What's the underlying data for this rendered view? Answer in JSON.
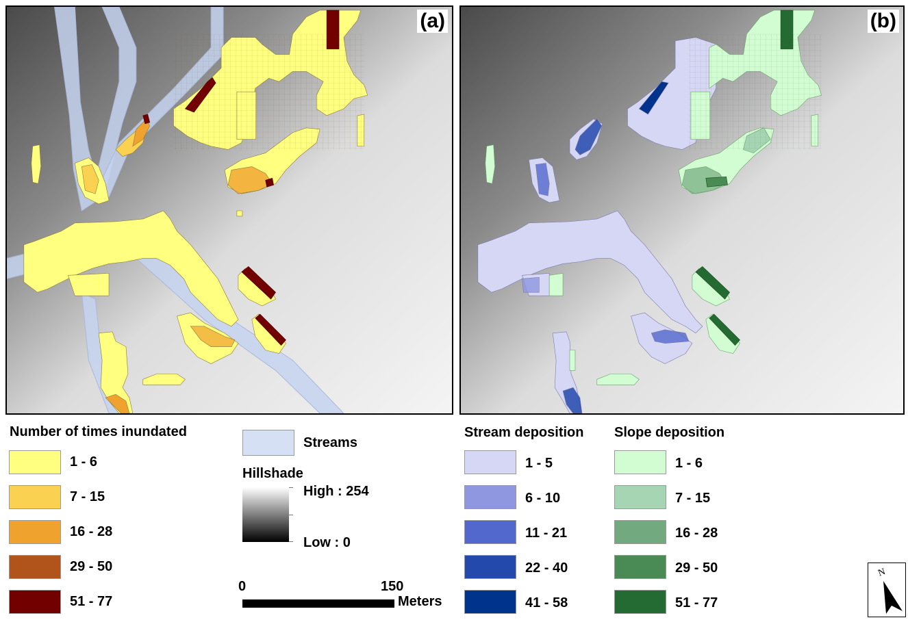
{
  "panels": {
    "a": {
      "label": "(a)"
    },
    "b": {
      "label": "(b)"
    }
  },
  "legend_inundated": {
    "title": "Number of times inundated",
    "classes": [
      {
        "label": "1 - 6",
        "color": "#ffff80"
      },
      {
        "label": "7 - 15",
        "color": "#fbd152"
      },
      {
        "label": "16 - 28",
        "color": "#f0a22e"
      },
      {
        "label": "29 - 50",
        "color": "#b0541b"
      },
      {
        "label": "51 - 77",
        "color": "#730000"
      }
    ]
  },
  "legend_streams": {
    "label": "Streams",
    "color": "#d6e0f5"
  },
  "legend_hillshade": {
    "title": "Hillshade",
    "high": "High : 254",
    "low": "Low : 0"
  },
  "scale_bar": {
    "start": "0",
    "end": "150",
    "unit": "Meters"
  },
  "legend_stream_deposition": {
    "title": "Stream deposition",
    "classes": [
      {
        "label": "1 - 5",
        "color": "#d6d6f5"
      },
      {
        "label": "6 - 10",
        "color": "#8f97e0"
      },
      {
        "label": "11 - 21",
        "color": "#5268cc"
      },
      {
        "label": "22 - 40",
        "color": "#2449ad"
      },
      {
        "label": "41 - 58",
        "color": "#00348c"
      }
    ]
  },
  "legend_slope_deposition": {
    "title": "Slope deposition",
    "classes": [
      {
        "label": "1 - 6",
        "color": "#d2fcd2"
      },
      {
        "label": "7 - 15",
        "color": "#a6d5b4"
      },
      {
        "label": "16 - 28",
        "color": "#73a97f"
      },
      {
        "label": "29 - 50",
        "color": "#4a8a54"
      },
      {
        "label": "51 - 77",
        "color": "#236a33"
      }
    ]
  },
  "north_arrow": {
    "letter": "N"
  }
}
